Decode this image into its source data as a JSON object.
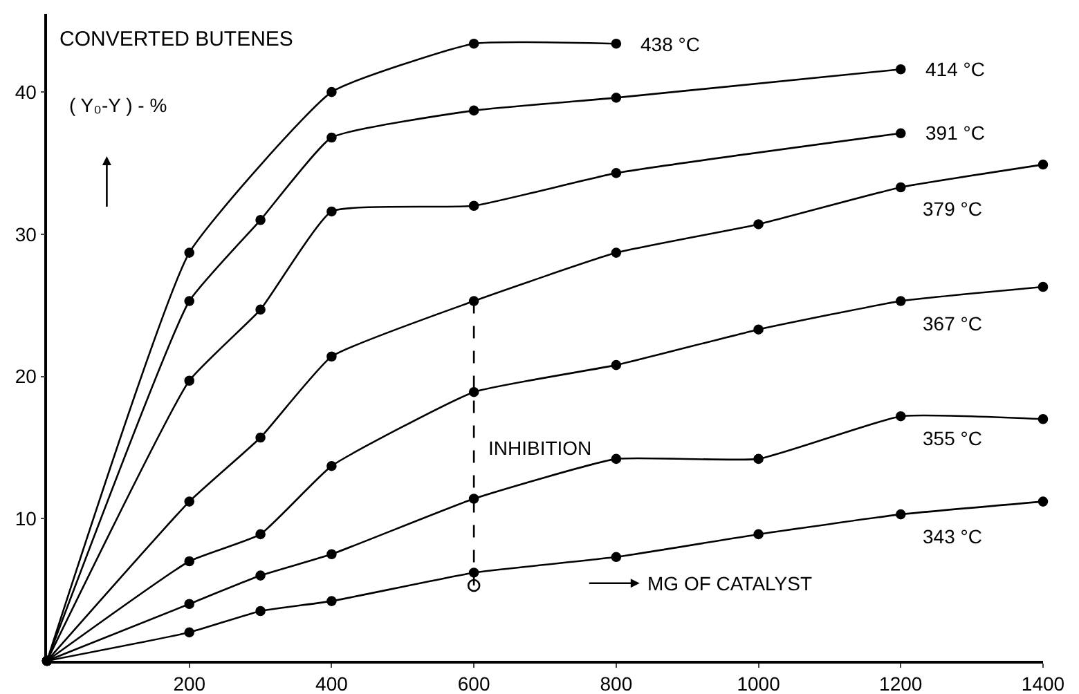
{
  "chart_data": {
    "type": "line",
    "title": "CONVERTED BUTENES",
    "ylabel": "( Y₀-Y ) - %",
    "xlabel": "MG OF CATALYST",
    "xlim": [
      0,
      1400
    ],
    "ylim": [
      0,
      45.5
    ],
    "xticks": [
      200,
      400,
      600,
      800,
      1000,
      1200,
      1400
    ],
    "yticks": [
      10,
      20,
      30,
      40
    ],
    "grid": false,
    "legend": false,
    "marker": "circle",
    "line_style": "solid",
    "series": [
      {
        "name": "438 °C",
        "color": "#000000",
        "x": [
          0,
          200,
          400,
          600,
          800
        ],
        "values": [
          0,
          28.7,
          40.0,
          43.4,
          43.4
        ]
      },
      {
        "name": "414 °C",
        "color": "#000000",
        "x": [
          0,
          200,
          300,
          400,
          600,
          800,
          1200
        ],
        "values": [
          0,
          25.3,
          31.0,
          36.8,
          38.7,
          39.6,
          41.6
        ]
      },
      {
        "name": "391 °C",
        "color": "#000000",
        "x": [
          0,
          200,
          300,
          400,
          600,
          800,
          1200
        ],
        "values": [
          0,
          19.7,
          24.7,
          31.6,
          32.0,
          34.3,
          37.1
        ]
      },
      {
        "name": "379 °C",
        "color": "#000000",
        "x": [
          0,
          200,
          300,
          400,
          600,
          800,
          1000,
          1200,
          1400
        ],
        "values": [
          0,
          11.2,
          15.7,
          21.4,
          25.3,
          28.7,
          30.7,
          33.3,
          34.9
        ]
      },
      {
        "name": "367 °C",
        "color": "#000000",
        "x": [
          0,
          200,
          300,
          400,
          600,
          800,
          1000,
          1200,
          1400
        ],
        "values": [
          0,
          7.0,
          8.9,
          13.7,
          18.9,
          20.8,
          23.3,
          25.3,
          26.3
        ]
      },
      {
        "name": "355 °C",
        "color": "#000000",
        "x": [
          0,
          200,
          300,
          400,
          600,
          800,
          1000,
          1200,
          1400
        ],
        "values": [
          0,
          4.0,
          6.0,
          7.5,
          11.4,
          14.2,
          14.2,
          17.2,
          17.0
        ]
      },
      {
        "name": "343 °C",
        "color": "#000000",
        "x": [
          0,
          200,
          300,
          400,
          600,
          800,
          1000,
          1200,
          1400
        ],
        "values": [
          0,
          2.0,
          3.5,
          4.2,
          6.2,
          7.3,
          8.9,
          10.3,
          11.2
        ]
      },
      {
        "type": "scatter",
        "color": "#000000",
        "marker": "circle-open",
        "x": [
          600
        ],
        "values": [
          5.3
        ]
      },
      {
        "type": "line",
        "color": "#000000",
        "marker": "none",
        "line_style": "dashed",
        "x": [
          600,
          600
        ],
        "values": [
          25.3,
          5.3
        ]
      }
    ],
    "annotations": [
      "INHIBITION"
    ]
  }
}
